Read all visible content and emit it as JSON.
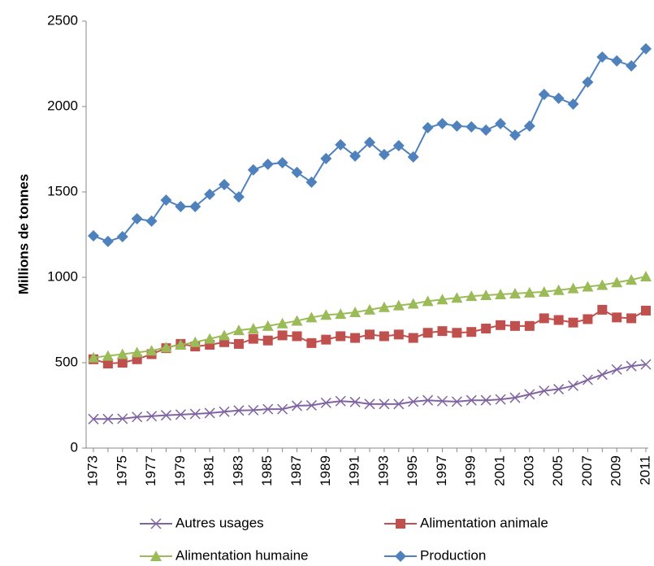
{
  "chart_data": {
    "type": "line",
    "y_label": "Millions de tonnes",
    "categories": [
      "1973",
      null,
      "1975",
      null,
      "1977",
      null,
      "1979",
      null,
      "1981",
      null,
      "1983",
      null,
      "1985",
      null,
      "1987",
      null,
      "1989",
      null,
      "1991",
      null,
      "1993",
      null,
      "1995",
      null,
      "1997",
      null,
      "1999",
      null,
      "2001",
      null,
      "2003",
      null,
      "2005",
      null,
      "2007",
      null,
      "2009",
      null,
      "2011"
    ],
    "ylim": [
      0,
      2500
    ],
    "yticks": [
      0,
      500,
      1000,
      1500,
      2000,
      2500
    ],
    "grid": false,
    "legend": "bottom",
    "series": [
      {
        "name": "Autres usages",
        "color": "#8064a2",
        "marker": "x",
        "values": [
          170,
          170,
          172,
          182,
          187,
          192,
          196,
          200,
          205,
          213,
          220,
          222,
          228,
          228,
          248,
          250,
          265,
          275,
          270,
          258,
          258,
          258,
          272,
          280,
          275,
          272,
          280,
          280,
          285,
          295,
          315,
          335,
          345,
          365,
          400,
          430,
          460,
          480,
          490
        ]
      },
      {
        "name": "Alimentation animale",
        "color": "#c0504d",
        "marker": "square",
        "values": [
          520,
          495,
          500,
          520,
          550,
          585,
          610,
          595,
          605,
          620,
          610,
          640,
          630,
          660,
          655,
          615,
          635,
          655,
          645,
          665,
          655,
          665,
          645,
          675,
          685,
          675,
          680,
          700,
          720,
          715,
          715,
          760,
          750,
          735,
          755,
          810,
          765,
          760,
          805
        ]
      },
      {
        "name": "Alimentation humaine",
        "color": "#9bbb59",
        "marker": "triangle",
        "values": [
          530,
          540,
          550,
          560,
          570,
          590,
          605,
          620,
          640,
          660,
          690,
          700,
          715,
          730,
          745,
          765,
          780,
          785,
          795,
          810,
          825,
          835,
          845,
          860,
          870,
          880,
          890,
          895,
          900,
          905,
          910,
          915,
          925,
          935,
          945,
          955,
          970,
          985,
          1005
        ]
      },
      {
        "name": "Production",
        "color": "#4f81bd",
        "marker": "diamond",
        "values": [
          1243,
          1210,
          1238,
          1343,
          1329,
          1452,
          1414,
          1414,
          1486,
          1543,
          1471,
          1629,
          1662,
          1671,
          1614,
          1557,
          1695,
          1776,
          1710,
          1790,
          1719,
          1771,
          1705,
          1876,
          1900,
          1886,
          1881,
          1862,
          1900,
          1833,
          1886,
          2071,
          2048,
          2014,
          2143,
          2290,
          2267,
          2238,
          2338
        ]
      }
    ]
  }
}
